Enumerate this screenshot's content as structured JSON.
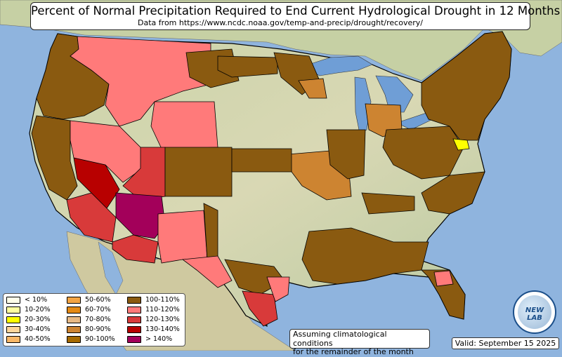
{
  "title": "Percent of Normal Precipitation Required to End Current Hydrological Drought in 12 Months",
  "subtitle": "Data from https://www.ncdc.noaa.gov/temp-and-precip/drought/recovery/",
  "legend": [
    {
      "label": "< 10%",
      "color": "#fffde8"
    },
    {
      "label": "10-20%",
      "color": "#ffffa0"
    },
    {
      "label": "20-30%",
      "color": "#ffff00"
    },
    {
      "label": "30-40%",
      "color": "#fdd59a"
    },
    {
      "label": "40-50%",
      "color": "#f9b766"
    },
    {
      "label": "50-60%",
      "color": "#f3a443"
    },
    {
      "label": "60-70%",
      "color": "#e58a14"
    },
    {
      "label": "70-80%",
      "color": "#e7b984"
    },
    {
      "label": "80-90%",
      "color": "#cd8431"
    },
    {
      "label": "90-100%",
      "color": "#a66a00"
    },
    {
      "label": "100-110%",
      "color": "#8a5a10"
    },
    {
      "label": "110-120%",
      "color": "#ff7a7a"
    },
    {
      "label": "120-130%",
      "color": "#d83a3a"
    },
    {
      "label": "130-140%",
      "color": "#b80000"
    },
    {
      "label": "> 140%",
      "color": "#a3005a"
    }
  ],
  "note": {
    "line1": "Assuming climatological conditions",
    "line2": "for the remainder of the month"
  },
  "valid": "Valid: September 15 2025",
  "logo_text": "NEW LAB",
  "colors": {
    "ocean": "#8fb4de",
    "land": "#d9d8b4",
    "border": "#000000",
    "great_lakes": "#6f9ed6"
  }
}
